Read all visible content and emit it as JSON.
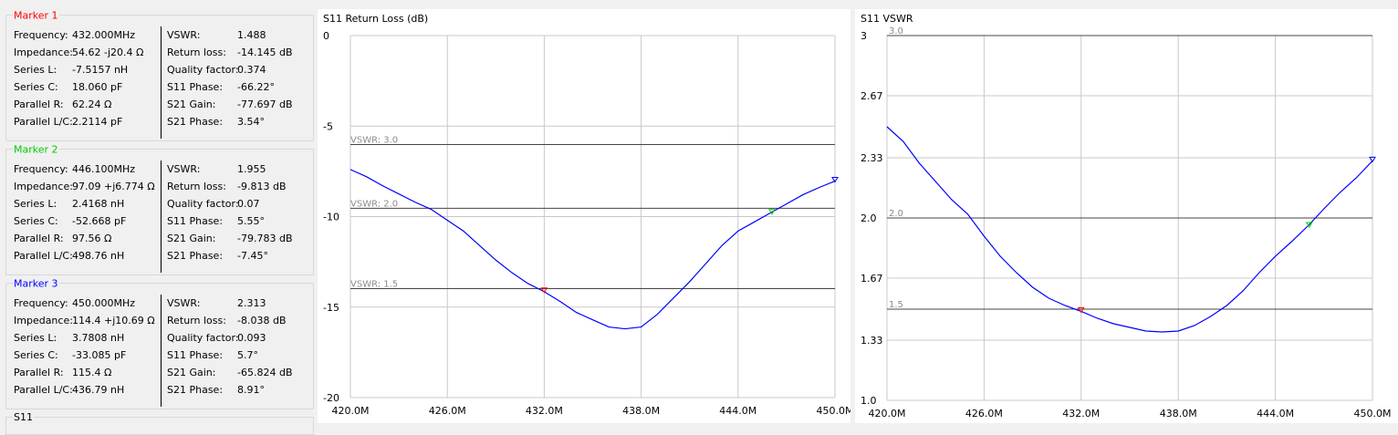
{
  "markers": [
    {
      "title": "Marker 1",
      "color": "#ff0000",
      "frequency": "432.000MHz",
      "impedance": "54.62 -j20.4 Ω",
      "series_l": "-7.5157 nH",
      "series_c": "18.060 pF",
      "parallel_r": "62.24 Ω",
      "parallel_lc": "2.2114 pF",
      "vswr": "1.488",
      "return_loss": "-14.145 dB",
      "quality_factor": "0.374",
      "s11_phase": "-66.22°",
      "s21_gain": "-77.697 dB",
      "s21_phase": "3.54°"
    },
    {
      "title": "Marker 2",
      "color": "#00cc00",
      "frequency": "446.100MHz",
      "impedance": "97.09 +j6.774 Ω",
      "series_l": "2.4168 nH",
      "series_c": "-52.668 pF",
      "parallel_r": "97.56 Ω",
      "parallel_lc": "498.76 nH",
      "vswr": "1.955",
      "return_loss": "-9.813 dB",
      "quality_factor": "0.07",
      "s11_phase": "5.55°",
      "s21_gain": "-79.783 dB",
      "s21_phase": "-7.45°"
    },
    {
      "title": "Marker 3",
      "color": "#0000ff",
      "frequency": "450.000MHz",
      "impedance": "114.4 +j10.69 Ω",
      "series_l": "3.7808 nH",
      "series_c": "-33.085 pF",
      "parallel_r": "115.4 Ω",
      "parallel_lc": "436.79 nH",
      "vswr": "2.313",
      "return_loss": "-8.038 dB",
      "quality_factor": "0.093",
      "s11_phase": "5.7°",
      "s21_gain": "-65.824 dB",
      "s21_phase": "8.91°"
    }
  ],
  "labels": {
    "frequency": "Frequency:",
    "impedance": "Impedance:",
    "series_l": "Series L:",
    "series_c": "Series C:",
    "parallel_r": "Parallel R:",
    "parallel_lc": "Parallel L/C:",
    "vswr": "VSWR:",
    "return_loss": "Return loss:",
    "quality_factor": "Quality factor:",
    "s11_phase": "S11 Phase:",
    "s21_gain": "S21 Gain:",
    "s21_phase": "S21 Phase:"
  },
  "s11_group_label": "S11",
  "chart_data": [
    {
      "type": "line",
      "title": "S11 Return Loss (dB)",
      "xlim": [
        420.0,
        450.0
      ],
      "ylim": [
        -20,
        0
      ],
      "x_ticks": [
        420,
        426,
        432,
        438,
        444,
        450
      ],
      "x_tick_labels": [
        "420.0M",
        "426.0M",
        "432.0M",
        "438.0M",
        "444.0M",
        "450.0M"
      ],
      "y_ticks": [
        0,
        -5,
        -10,
        -15,
        -20
      ],
      "y_tick_labels": [
        "0",
        "-5",
        "-10",
        "-15",
        "-20"
      ],
      "reference_lines": [
        {
          "value": -6.02,
          "label": "VSWR: 3.0"
        },
        {
          "value": -9.54,
          "label": "VSWR: 2.0"
        },
        {
          "value": -13.98,
          "label": "VSWR: 1.5"
        }
      ],
      "series": [
        {
          "color": "#0000ff",
          "x": [
            420,
            421,
            422,
            423,
            424,
            425,
            426,
            427,
            428,
            429,
            430,
            431,
            432,
            433,
            434,
            435,
            436,
            437,
            438,
            439,
            440,
            441,
            442,
            443,
            444,
            445,
            446,
            447,
            448,
            449,
            450
          ],
          "y": [
            -7.4,
            -7.8,
            -8.3,
            -8.75,
            -9.2,
            -9.6,
            -10.2,
            -10.8,
            -11.6,
            -12.4,
            -13.1,
            -13.7,
            -14.15,
            -14.7,
            -15.3,
            -15.7,
            -16.1,
            -16.2,
            -16.1,
            -15.4,
            -14.5,
            -13.6,
            -12.6,
            -11.6,
            -10.8,
            -10.3,
            -9.8,
            -9.3,
            -8.8,
            -8.4,
            -8.04
          ]
        }
      ],
      "markers": [
        {
          "name": "1",
          "x": 432.0,
          "y": -14.145,
          "color": "#ff0000"
        },
        {
          "name": "2",
          "x": 446.1,
          "y": -9.813,
          "color": "#00cc00"
        },
        {
          "name": "3",
          "x": 450.0,
          "y": -8.038,
          "color": "#0000ff"
        }
      ],
      "grid": true
    },
    {
      "type": "line",
      "title": "S11 VSWR",
      "xlim": [
        420.0,
        450.0
      ],
      "ylim": [
        1.0,
        3.0
      ],
      "x_ticks": [
        420,
        426,
        432,
        438,
        444,
        450
      ],
      "x_tick_labels": [
        "420.0M",
        "426.0M",
        "432.0M",
        "438.0M",
        "444.0M",
        "450.0M"
      ],
      "y_ticks": [
        3,
        2.67,
        2.33,
        2.0,
        1.67,
        1.33,
        1.0
      ],
      "y_tick_labels": [
        "3",
        "2.67",
        "2.33",
        "2.0",
        "1.67",
        "1.33",
        "1.0"
      ],
      "reference_lines": [
        {
          "value": 3.0,
          "label": "3.0"
        },
        {
          "value": 2.0,
          "label": "2.0"
        },
        {
          "value": 1.5,
          "label": "1.5"
        }
      ],
      "series": [
        {
          "color": "#0000ff",
          "x": [
            420,
            421,
            422,
            423,
            424,
            425,
            426,
            427,
            428,
            429,
            430,
            431,
            432,
            433,
            434,
            435,
            436,
            437,
            438,
            439,
            440,
            441,
            442,
            443,
            444,
            445,
            446,
            447,
            448,
            449,
            450
          ],
          "y": [
            2.5,
            2.42,
            2.3,
            2.2,
            2.1,
            2.02,
            1.9,
            1.79,
            1.7,
            1.62,
            1.56,
            1.52,
            1.488,
            1.45,
            1.42,
            1.4,
            1.38,
            1.375,
            1.38,
            1.41,
            1.46,
            1.52,
            1.6,
            1.7,
            1.79,
            1.87,
            1.955,
            2.05,
            2.14,
            2.22,
            2.313
          ]
        }
      ],
      "markers": [
        {
          "name": "1",
          "x": 432.0,
          "y": 1.488,
          "color": "#ff0000"
        },
        {
          "name": "2",
          "x": 446.1,
          "y": 1.955,
          "color": "#00cc00"
        },
        {
          "name": "3",
          "x": 450.0,
          "y": 2.313,
          "color": "#0000ff"
        }
      ],
      "grid": true
    }
  ]
}
